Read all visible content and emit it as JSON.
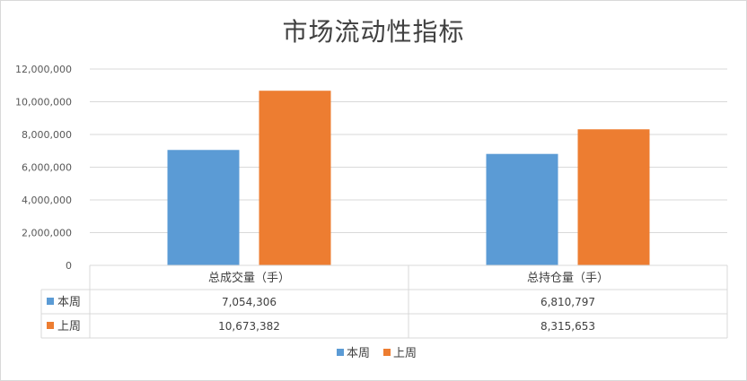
{
  "chart_data": {
    "type": "bar",
    "title": "市场流动性指标",
    "categories": [
      "总成交量（手）",
      "总持仓量（手）"
    ],
    "series": [
      {
        "name": "本周",
        "values": [
          7054306,
          6810797
        ],
        "color": "#5B9BD5"
      },
      {
        "name": "上周",
        "values": [
          10673382,
          8315653
        ],
        "color": "#ED7D31"
      }
    ],
    "ylim": [
      0,
      12000000
    ],
    "y_ticks": [
      0,
      2000000,
      4000000,
      6000000,
      8000000,
      10000000,
      12000000
    ],
    "y_tick_labels": [
      "0",
      "2,000,000",
      "4,000,000",
      "6,000,000",
      "8,000,000",
      "10,000,000",
      "12,000,000"
    ],
    "data_table": {
      "rows": [
        {
          "series": "本周",
          "values": [
            "7,054,306",
            "6,810,797"
          ]
        },
        {
          "series": "上周",
          "values": [
            "10,673,382",
            "8,315,653"
          ]
        }
      ]
    },
    "legend": {
      "placement": "bottom",
      "entries": [
        "本周",
        "上周"
      ]
    },
    "grid": true
  }
}
